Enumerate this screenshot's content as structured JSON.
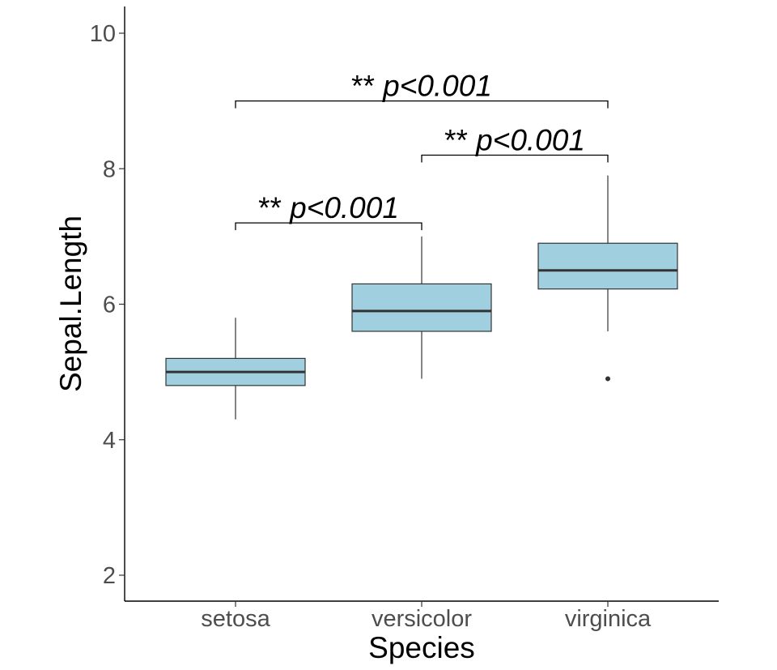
{
  "chart_data": {
    "type": "boxplot",
    "title": "",
    "xlabel": "Species",
    "ylabel": "Sepal.Length",
    "ylim": [
      1.6,
      10.4
    ],
    "yticks": [
      2,
      4,
      6,
      8,
      10
    ],
    "categories": [
      "setosa",
      "versicolor",
      "virginica"
    ],
    "box_color": "#A0D0E0",
    "line_color": "#333333",
    "boxes": [
      {
        "category": "setosa",
        "whisker_low": 4.3,
        "q1": 4.8,
        "median": 5.0,
        "q3": 5.2,
        "whisker_high": 5.8,
        "outliers": []
      },
      {
        "category": "versicolor",
        "whisker_low": 4.9,
        "q1": 5.6,
        "median": 5.9,
        "q3": 6.3,
        "whisker_high": 7.0,
        "outliers": []
      },
      {
        "category": "virginica",
        "whisker_low": 5.6,
        "q1": 6.225,
        "median": 6.5,
        "q3": 6.9,
        "whisker_high": 7.9,
        "outliers": [
          4.9
        ]
      }
    ],
    "comparisons": [
      {
        "from": "setosa",
        "to": "versicolor",
        "y": 7.2,
        "stars": "**",
        "p_label": "p<0.001"
      },
      {
        "from": "versicolor",
        "to": "virginica",
        "y": 8.2,
        "stars": "**",
        "p_label": "p<0.001"
      },
      {
        "from": "setosa",
        "to": "virginica",
        "y": 9.0,
        "stars": "**",
        "p_label": "p<0.001"
      }
    ]
  }
}
